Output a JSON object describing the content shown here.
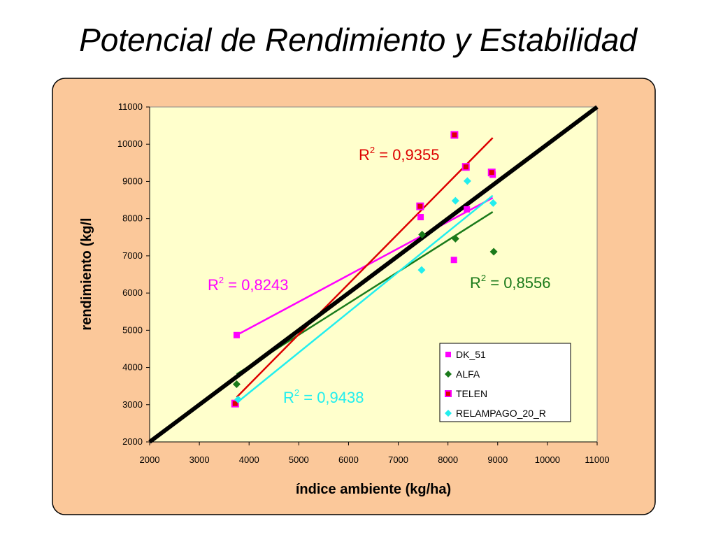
{
  "slide": {
    "title": "Potencial de Rendimiento y Estabilidad"
  },
  "colors": {
    "panel_bg": "#fbc89a",
    "plot_bg": "#ffffcc",
    "dk51": "#ff00ff",
    "alfa": "#1a7a1a",
    "telen": "#dd0000",
    "relampago": "#22eeee",
    "reference": "#000000"
  },
  "chart_data": {
    "type": "scatter",
    "xlabel": "índice ambiente (kg/ha)",
    "ylabel": "rendimiento (kg/l",
    "xlim": [
      2000,
      11000
    ],
    "ylim": [
      2000,
      11000
    ],
    "xticks": [
      2000,
      3000,
      4000,
      5000,
      6000,
      7000,
      8000,
      9000,
      10000,
      11000
    ],
    "yticks": [
      2000,
      3000,
      4000,
      5000,
      6000,
      7000,
      8000,
      9000,
      10000,
      11000
    ],
    "xtick_labels": [
      "2000",
      "3000",
      "4000",
      "5000",
      "6000",
      "7000",
      "8000",
      "9000",
      "10000",
      "11000"
    ],
    "ytick_labels": [
      "2000",
      "3000",
      "4000",
      "5000",
      "6000",
      "7000",
      "8000",
      "9000",
      "10000",
      "11000"
    ],
    "legend_position": "bottom-right",
    "reference_line": {
      "x": [
        2000,
        11000
      ],
      "y": [
        2000,
        11000
      ]
    },
    "series": [
      {
        "name": "DK_51",
        "marker": "square",
        "x": [
          3750,
          7450,
          8120,
          8380,
          8900
        ],
        "y": [
          4870,
          8040,
          6890,
          8250,
          9180
        ],
        "trend": {
          "x": [
            3750,
            8900
          ],
          "y": [
            4870,
            8560
          ]
        },
        "r2_prefix": "R",
        "r2_sup": "2",
        "r2_value": " = 0,8243"
      },
      {
        "name": "ALFA",
        "marker": "diamond",
        "x": [
          3750,
          7480,
          8150,
          8920
        ],
        "y": [
          3550,
          7570,
          7460,
          7110
        ],
        "trend": {
          "x": [
            3750,
            8900
          ],
          "y": [
            3820,
            8180
          ]
        },
        "r2_prefix": "R",
        "r2_sup": "2",
        "r2_value": " = 0,8556"
      },
      {
        "name": "TELEN",
        "marker": "square-red",
        "x": [
          3720,
          7440,
          8130,
          8360,
          8880
        ],
        "y": [
          3030,
          8330,
          10250,
          9390,
          9240
        ],
        "trend": {
          "x": [
            3750,
            8900
          ],
          "y": [
            3200,
            10170
          ]
        },
        "r2_prefix": "R",
        "r2_sup": "2",
        "r2_value": " = 0,9355"
      },
      {
        "name": "RELAMPAGO_20_R",
        "marker": "diamond",
        "x": [
          3780,
          7470,
          8150,
          8390,
          8910
        ],
        "y": [
          3140,
          6620,
          8480,
          9010,
          8420
        ],
        "trend": {
          "x": [
            3750,
            8900
          ],
          "y": [
            3050,
            8620
          ]
        },
        "r2_prefix": "R",
        "r2_sup": "2",
        "r2_value": " = 0,9438"
      }
    ]
  }
}
